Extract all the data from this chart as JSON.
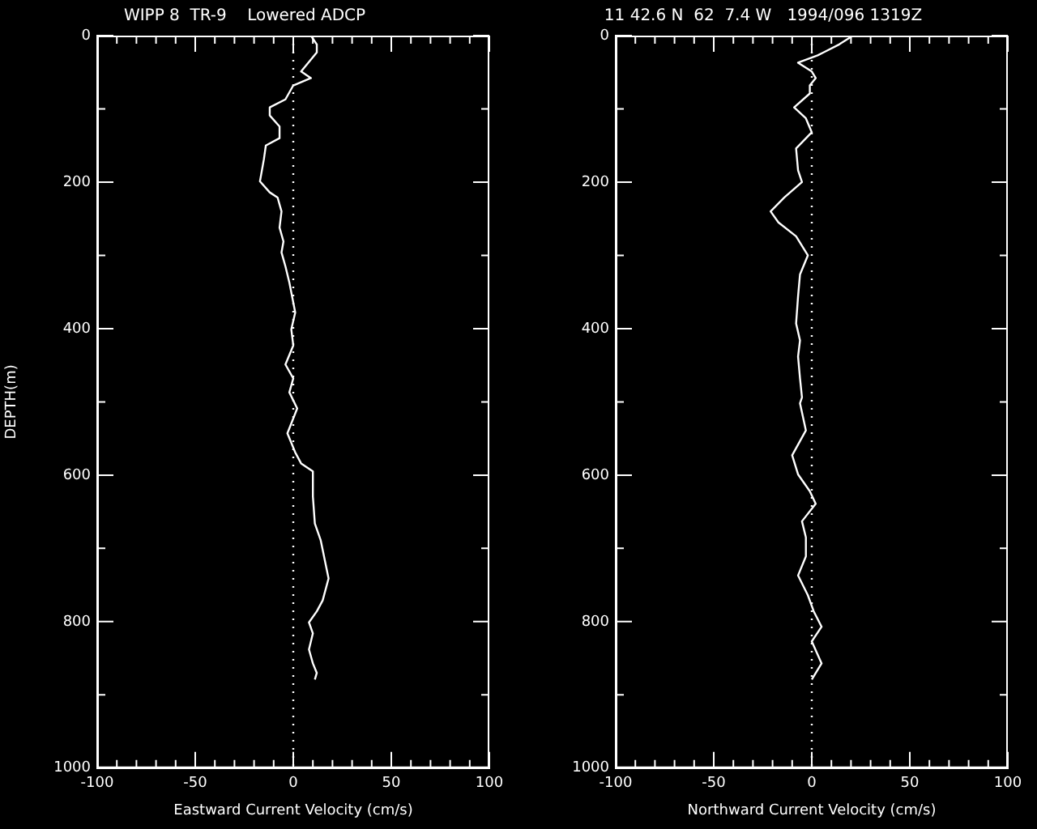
{
  "chart_data": [
    {
      "type": "line",
      "title": "WIPP 8  TR-9    Lowered ADCP",
      "xlabel": "Eastward Current Velocity (cm/s)",
      "ylabel": "DEPTH(m)",
      "xlim": [
        -100,
        100
      ],
      "ylim": [
        1000,
        0
      ],
      "xticks": [
        -100,
        {
          "value": -90,
          "label": null
        },
        {
          "value": -80,
          "label": null
        },
        {
          "value": -70,
          "label": null
        },
        {
          "value": -60,
          "label": null
        },
        -50,
        {
          "value": -40,
          "label": null
        },
        {
          "value": -30,
          "label": null
        },
        {
          "value": -20,
          "label": null
        },
        {
          "value": -10,
          "label": null
        },
        0,
        {
          "value": 10,
          "label": null
        },
        {
          "value": 20,
          "label": null
        },
        {
          "value": 30,
          "label": null
        },
        {
          "value": 40,
          "label": null
        },
        50,
        {
          "value": 60,
          "label": null
        },
        {
          "value": 70,
          "label": null
        },
        {
          "value": 80,
          "label": null
        },
        {
          "value": 90,
          "label": null
        },
        100
      ],
      "yticks": [
        0,
        {
          "value": 100,
          "label": null
        },
        200,
        {
          "value": 300,
          "label": null
        },
        400,
        {
          "value": 500,
          "label": null
        },
        600,
        {
          "value": 700,
          "label": null
        },
        800,
        {
          "value": 900,
          "label": null
        },
        1000
      ],
      "grid": false,
      "legend": false,
      "marker": "none",
      "line_style": "solid",
      "ref_lines": [
        {
          "axis": "x",
          "value": 0,
          "color": "#ffffff",
          "line_style": "dotted"
        }
      ],
      "series": [
        {
          "color": "#ffffff",
          "x": [
            9,
            12,
            12,
            4,
            9,
            0,
            -4,
            -12,
            -12,
            -7,
            -7,
            -14,
            -15,
            -17,
            -12,
            -8,
            -6,
            -7,
            -5,
            -6,
            -4,
            -2,
            1,
            -1,
            0,
            -4,
            0,
            -2,
            2,
            -3,
            1,
            4,
            10,
            10,
            11,
            14,
            18,
            15,
            12,
            8,
            10,
            8,
            10,
            12,
            11
          ],
          "values": [
            0,
            12,
            23,
            49,
            58,
            68,
            87,
            98,
            109,
            124,
            140,
            150,
            169,
            199,
            214,
            221,
            240,
            262,
            281,
            296,
            315,
            337,
            378,
            401,
            423,
            449,
            468,
            487,
            509,
            543,
            569,
            584,
            595,
            629,
            666,
            689,
            741,
            771,
            786,
            801,
            816,
            838,
            857,
            870,
            879
          ]
        }
      ]
    },
    {
      "type": "line",
      "title": "11 42.6 N  62  7.4 W   1994/096 1319Z",
      "xlabel": "Northward Current Velocity (cm/s)",
      "xlim": [
        -100,
        100
      ],
      "ylim": [
        1000,
        0
      ],
      "xticks": [
        -100,
        {
          "value": -90,
          "label": null
        },
        {
          "value": -80,
          "label": null
        },
        {
          "value": -70,
          "label": null
        },
        {
          "value": -60,
          "label": null
        },
        -50,
        {
          "value": -40,
          "label": null
        },
        {
          "value": -30,
          "label": null
        },
        {
          "value": -20,
          "label": null
        },
        {
          "value": -10,
          "label": null
        },
        0,
        {
          "value": 10,
          "label": null
        },
        {
          "value": 20,
          "label": null
        },
        {
          "value": 30,
          "label": null
        },
        {
          "value": 40,
          "label": null
        },
        50,
        {
          "value": 60,
          "label": null
        },
        {
          "value": 70,
          "label": null
        },
        {
          "value": 80,
          "label": null
        },
        {
          "value": 90,
          "label": null
        },
        100
      ],
      "yticks": [
        0,
        {
          "value": 100,
          "label": null
        },
        200,
        {
          "value": 300,
          "label": null
        },
        400,
        {
          "value": 500,
          "label": null
        },
        600,
        {
          "value": 700,
          "label": null
        },
        800,
        {
          "value": 900,
          "label": null
        },
        1000
      ],
      "grid": false,
      "legend": false,
      "marker": "none",
      "line_style": "solid",
      "ref_lines": [
        {
          "axis": "x",
          "value": 0,
          "color": "#ffffff",
          "line_style": "dotted"
        }
      ],
      "series": [
        {
          "color": "#ffffff",
          "x": [
            21,
            14,
            3,
            -7,
            0,
            2,
            -1,
            -1,
            -9,
            -3,
            0,
            -8,
            -7,
            -5,
            -14,
            -21,
            -17,
            -8,
            -2,
            -6,
            -7,
            -8,
            -6,
            -7,
            -6,
            -5,
            -6,
            -3,
            -10,
            -7,
            -1,
            2,
            -5,
            -3,
            -3,
            -7,
            -2,
            1,
            5,
            0,
            5,
            0
          ],
          "values": [
            0,
            12,
            27,
            37,
            49,
            58,
            68,
            79,
            98,
            113,
            132,
            154,
            184,
            200,
            221,
            240,
            255,
            274,
            300,
            326,
            356,
            393,
            416,
            438,
            468,
            494,
            502,
            539,
            573,
            599,
            622,
            639,
            663,
            685,
            711,
            737,
            764,
            786,
            807,
            827,
            857,
            879
          ]
        }
      ]
    }
  ]
}
